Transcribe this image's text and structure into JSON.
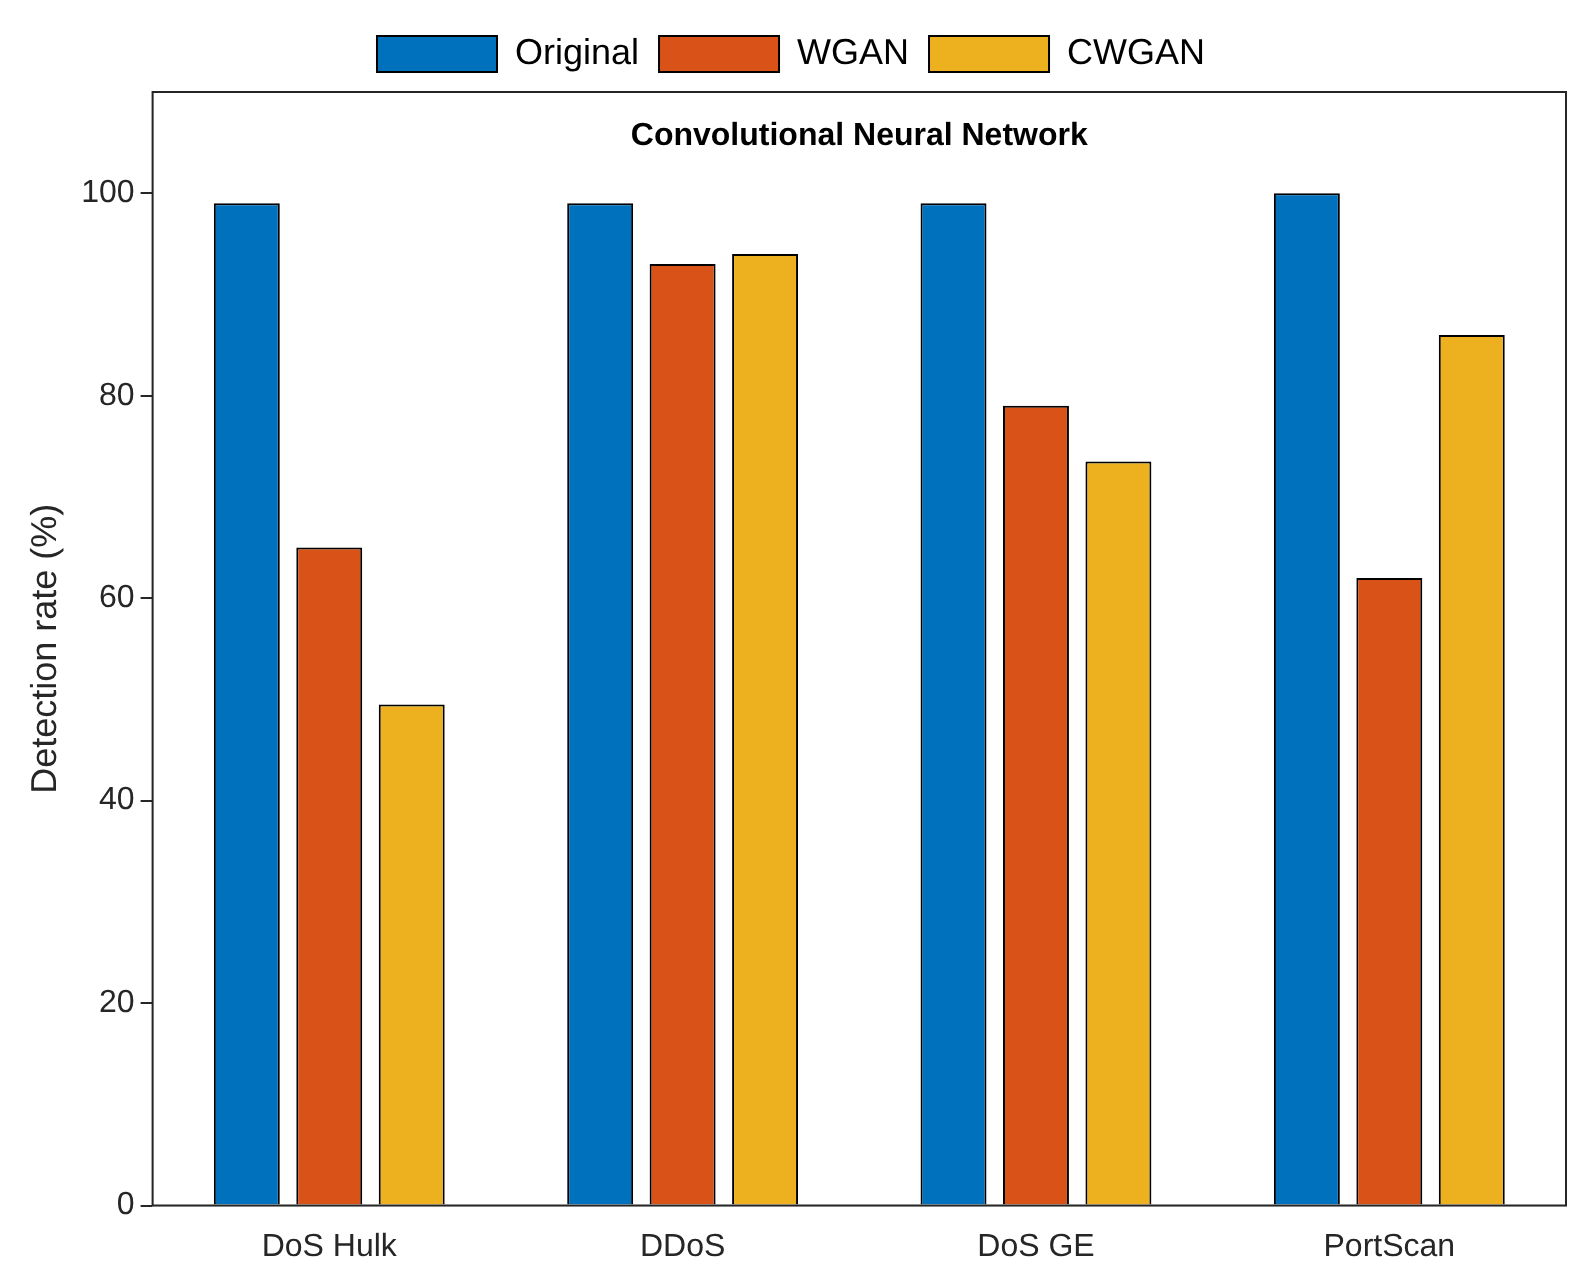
{
  "chart_data": {
    "type": "bar",
    "title": "Convolutional Neural Network",
    "ylabel": "Detection rate (%)",
    "categories": [
      "DoS Hulk",
      "DDoS",
      "DoS GE",
      "PortScan"
    ],
    "series": [
      {
        "name": "Original",
        "color": "#0072bd",
        "values": [
          99,
          99,
          99,
          100
        ]
      },
      {
        "name": "WGAN",
        "color": "#d95319",
        "values": [
          65,
          93,
          79,
          62
        ]
      },
      {
        "name": "CWGAN",
        "color": "#edb120",
        "values": [
          49.5,
          94,
          73.5,
          86
        ]
      }
    ],
    "ylim": [
      0,
      110
    ],
    "yticks": [
      0,
      20,
      40,
      60,
      80,
      100
    ],
    "grid": false,
    "legend": "top"
  }
}
